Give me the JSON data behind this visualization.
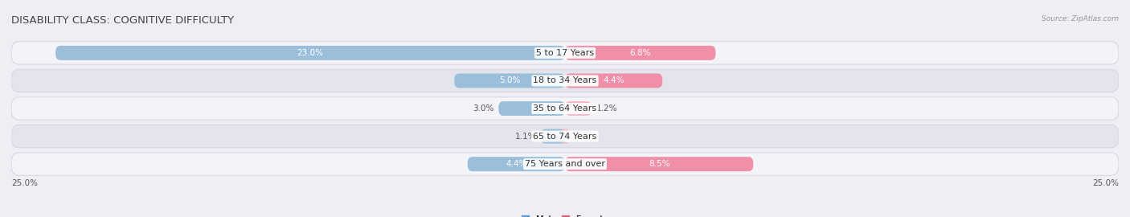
{
  "title": "DISABILITY CLASS: COGNITIVE DIFFICULTY",
  "source": "Source: ZipAtlas.com",
  "categories": [
    "5 to 17 Years",
    "18 to 34 Years",
    "35 to 64 Years",
    "65 to 74 Years",
    "75 Years and over"
  ],
  "male_values": [
    23.0,
    5.0,
    3.0,
    1.1,
    4.4
  ],
  "female_values": [
    6.8,
    4.4,
    1.2,
    0.0,
    8.5
  ],
  "max_val": 25.0,
  "male_color": "#9bbfdb",
  "female_color": "#f090a8",
  "male_color_light": "#b8d0e8",
  "female_color_light": "#f8b8c8",
  "male_dark_color": "#5b9bd5",
  "female_dark_color": "#e8607a",
  "bg_color": "#eeeef4",
  "row_bg_light": "#f4f4f8",
  "row_bg_dark": "#e4e4ec",
  "row_border": "#d8d8e4",
  "title_color": "#444444",
  "label_color": "#555555",
  "value_inside_color": "#ffffff",
  "value_outside_color": "#555555",
  "title_fontsize": 9.5,
  "cat_fontsize": 8,
  "val_fontsize": 7.5,
  "axis_fontsize": 7.5,
  "legend_fontsize": 8
}
